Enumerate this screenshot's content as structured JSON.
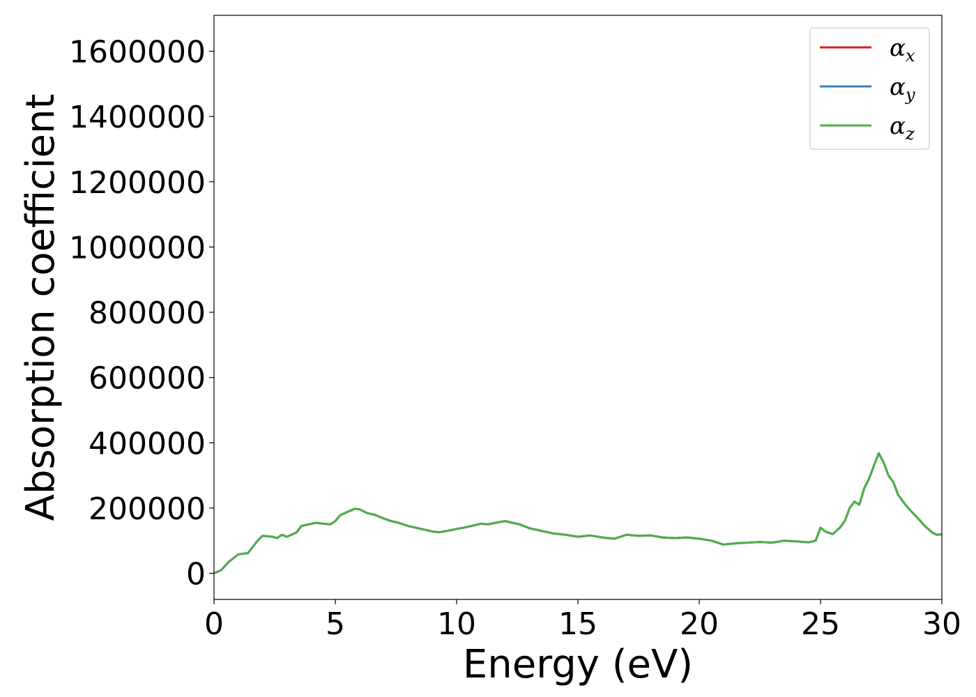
{
  "chart_data": {
    "type": "line",
    "xlabel": "Energy (eV)",
    "ylabel": "Absorption coefficient",
    "xlim": [
      0,
      30
    ],
    "ylim": [
      -80000,
      1710000
    ],
    "xticks": [
      0,
      5,
      10,
      15,
      20,
      25,
      30
    ],
    "yticks": [
      0,
      200000,
      400000,
      600000,
      800000,
      1000000,
      1200000,
      1400000,
      1600000
    ],
    "grid": false,
    "legend_position": "top-right",
    "x": [
      0,
      0.3,
      0.6,
      1.0,
      1.4,
      1.8,
      2.0,
      2.4,
      2.6,
      2.8,
      3.0,
      3.4,
      3.6,
      3.9,
      4.2,
      4.5,
      4.8,
      5.0,
      5.2,
      5.5,
      5.8,
      6.0,
      6.3,
      6.6,
      7.0,
      7.3,
      7.6,
      8.0,
      8.3,
      8.6,
      9.0,
      9.3,
      9.6,
      10.0,
      10.3,
      10.6,
      11.0,
      11.3,
      11.6,
      12.0,
      12.3,
      12.6,
      13.0,
      13.5,
      14.0,
      14.5,
      15.0,
      15.5,
      16.0,
      16.5,
      17.0,
      17.5,
      18.0,
      18.5,
      19.0,
      19.5,
      20.0,
      20.5,
      21.0,
      21.5,
      22.0,
      22.5,
      23.0,
      23.5,
      24.0,
      24.5,
      24.8,
      25.0,
      25.2,
      25.5,
      25.8,
      26.0,
      26.2,
      26.4,
      26.6,
      26.8,
      27.0,
      27.2,
      27.4,
      27.6,
      27.8,
      28.0,
      28.2,
      28.5,
      28.8,
      29.0,
      29.3,
      29.6,
      29.8,
      30.0
    ],
    "series": [
      {
        "name": "α_x",
        "color": "#e41a1c",
        "values": [
          0,
          10000,
          35000,
          58000,
          62000,
          100000,
          115000,
          112000,
          108000,
          118000,
          112000,
          125000,
          145000,
          150000,
          155000,
          152000,
          150000,
          160000,
          178000,
          188000,
          198000,
          196000,
          185000,
          180000,
          168000,
          160000,
          155000,
          145000,
          140000,
          135000,
          128000,
          126000,
          130000,
          136000,
          140000,
          145000,
          152000,
          150000,
          155000,
          160000,
          155000,
          150000,
          138000,
          130000,
          122000,
          118000,
          112000,
          116000,
          110000,
          106000,
          118000,
          115000,
          116000,
          110000,
          108000,
          110000,
          106000,
          100000,
          88000,
          92000,
          94000,
          96000,
          94000,
          100000,
          98000,
          95000,
          100000,
          140000,
          128000,
          120000,
          140000,
          160000,
          200000,
          220000,
          210000,
          260000,
          290000,
          330000,
          368000,
          340000,
          300000,
          280000,
          240000,
          210000,
          185000,
          170000,
          145000,
          125000,
          118000,
          120000
        ]
      },
      {
        "name": "α_y",
        "color": "#377eb8",
        "values": [
          0,
          10000,
          35000,
          58000,
          62000,
          100000,
          115000,
          112000,
          108000,
          118000,
          112000,
          125000,
          145000,
          150000,
          155000,
          152000,
          150000,
          160000,
          178000,
          188000,
          198000,
          196000,
          185000,
          180000,
          168000,
          160000,
          155000,
          145000,
          140000,
          135000,
          128000,
          126000,
          130000,
          136000,
          140000,
          145000,
          152000,
          150000,
          155000,
          160000,
          155000,
          150000,
          138000,
          130000,
          122000,
          118000,
          112000,
          116000,
          110000,
          106000,
          118000,
          115000,
          116000,
          110000,
          108000,
          110000,
          106000,
          100000,
          88000,
          92000,
          94000,
          96000,
          94000,
          100000,
          98000,
          95000,
          100000,
          140000,
          128000,
          120000,
          140000,
          160000,
          200000,
          220000,
          210000,
          260000,
          290000,
          330000,
          368000,
          340000,
          300000,
          280000,
          240000,
          210000,
          185000,
          170000,
          145000,
          125000,
          118000,
          120000
        ]
      },
      {
        "name": "α_z",
        "color": "#4daf4a",
        "values": [
          0,
          10000,
          35000,
          58000,
          62000,
          100000,
          115000,
          112000,
          108000,
          118000,
          112000,
          125000,
          145000,
          150000,
          155000,
          152000,
          150000,
          160000,
          178000,
          188000,
          198000,
          196000,
          185000,
          180000,
          168000,
          160000,
          155000,
          145000,
          140000,
          135000,
          128000,
          126000,
          130000,
          136000,
          140000,
          145000,
          152000,
          150000,
          155000,
          160000,
          155000,
          150000,
          138000,
          130000,
          122000,
          118000,
          112000,
          116000,
          110000,
          106000,
          118000,
          115000,
          116000,
          110000,
          108000,
          110000,
          106000,
          100000,
          88000,
          92000,
          94000,
          96000,
          94000,
          100000,
          98000,
          95000,
          100000,
          140000,
          128000,
          120000,
          140000,
          160000,
          200000,
          220000,
          210000,
          260000,
          290000,
          330000,
          368000,
          340000,
          300000,
          280000,
          240000,
          210000,
          185000,
          170000,
          145000,
          125000,
          118000,
          120000
        ]
      }
    ],
    "legend": [
      {
        "symbol": "α",
        "subscript": "x",
        "color": "#e41a1c"
      },
      {
        "symbol": "α",
        "subscript": "y",
        "color": "#377eb8"
      },
      {
        "symbol": "α",
        "subscript": "z",
        "color": "#4daf4a"
      }
    ]
  }
}
